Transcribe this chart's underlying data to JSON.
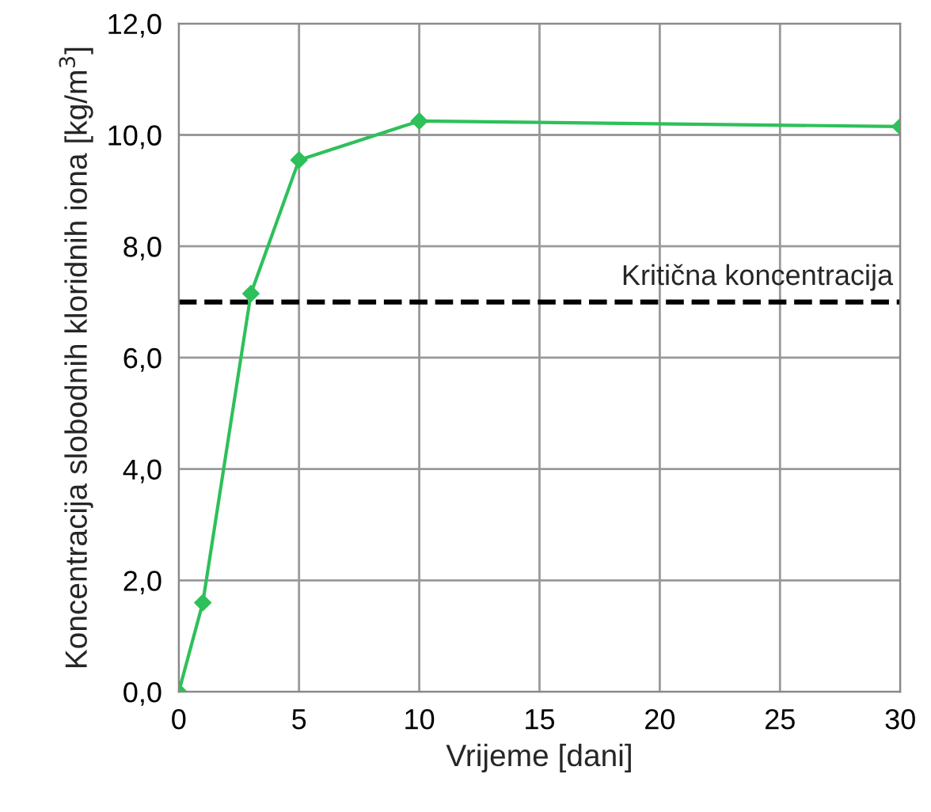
{
  "chart_data": {
    "type": "line",
    "xlabel": "Vrijeme [dani]",
    "ylabel": "Koncentracija slobodnih kloridnih iona [kg/m$^{3}$]",
    "x": [
      0,
      1,
      3,
      5,
      10,
      30
    ],
    "series": [
      {
        "color": "#2ec05a",
        "values": [
          0.0,
          1.6,
          7.15,
          9.55,
          10.25,
          10.15
        ]
      }
    ],
    "xlim": [
      0,
      30
    ],
    "xticks": [
      0,
      5,
      10,
      15,
      20,
      25,
      30
    ],
    "ylim": [
      0,
      12
    ],
    "yticks": [
      {
        "value": 0,
        "label": "0,0"
      },
      {
        "value": 2,
        "label": "2,0"
      },
      {
        "value": 4,
        "label": "4,0"
      },
      {
        "value": 6,
        "label": "6,0"
      },
      {
        "value": 8,
        "label": "8,0"
      },
      {
        "value": 10,
        "label": "10,0"
      },
      {
        "value": 12,
        "label": "12,0"
      }
    ],
    "ref_lines": [
      {
        "axis": "y",
        "value": 7.0,
        "label": "Kritična koncentracija",
        "color": "#000000",
        "line_style": "dashed"
      }
    ],
    "grid": true,
    "marker": "diamond",
    "line_style": "solid"
  }
}
